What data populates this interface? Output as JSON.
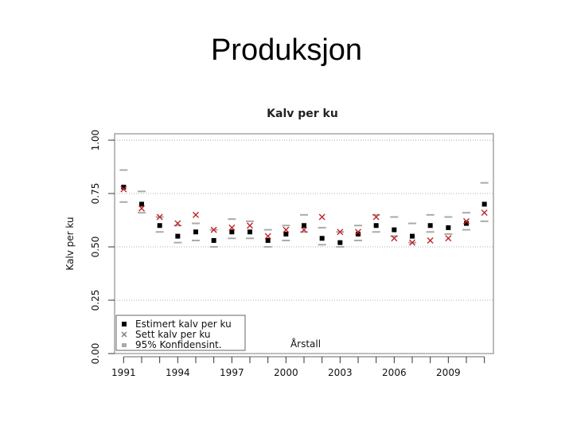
{
  "slide": {
    "title": "Produksjon"
  },
  "colors": {
    "estimate": "#000000",
    "observed": "#c0262b",
    "ci": "#aaaaaa",
    "grid": "#999999"
  },
  "chart_data": {
    "type": "scatter",
    "title": "Kalv per ku",
    "xlabel": "Årstall",
    "ylabel": "Kalv per ku",
    "x": [
      1991,
      1992,
      1993,
      1994,
      1995,
      1996,
      1997,
      1998,
      1999,
      2000,
      2001,
      2002,
      2003,
      2004,
      2005,
      2006,
      2007,
      2008,
      2009,
      2010,
      2011
    ],
    "xlim": [
      1990.5,
      2011.5
    ],
    "ylim": [
      0,
      1.03
    ],
    "xticks": [
      "1991",
      "1994",
      "1997",
      "2000",
      "2003",
      "2006",
      "2009"
    ],
    "yticks": [
      "0.00",
      "0.25",
      "0.50",
      "0.75",
      "1.00"
    ],
    "grid": true,
    "legend_position": "bottom-left",
    "series": [
      {
        "name": "Estimert kalv per ku",
        "marker": "square",
        "values": [
          0.78,
          0.7,
          0.6,
          0.55,
          0.57,
          0.53,
          0.57,
          0.57,
          0.53,
          0.56,
          0.6,
          0.54,
          0.52,
          0.56,
          0.6,
          0.58,
          0.55,
          0.6,
          0.59,
          0.61,
          0.7
        ]
      },
      {
        "name": "Sett kalv per ku",
        "marker": "x",
        "values": [
          0.77,
          0.68,
          0.64,
          0.61,
          0.65,
          0.58,
          0.59,
          0.6,
          0.55,
          0.58,
          0.58,
          0.64,
          0.57,
          0.57,
          0.64,
          0.54,
          0.52,
          0.53,
          0.54,
          0.62,
          0.66
        ]
      },
      {
        "name": "95% Konfidensint.",
        "marker": "dash",
        "lower": [
          0.71,
          0.66,
          0.57,
          0.52,
          0.53,
          0.5,
          0.54,
          0.54,
          0.5,
          0.53,
          0.57,
          0.51,
          0.5,
          0.53,
          0.57,
          0.55,
          0.52,
          0.57,
          0.56,
          0.58,
          0.62
        ],
        "upper": [
          0.86,
          0.76,
          0.64,
          0.6,
          0.61,
          0.58,
          0.63,
          0.62,
          0.58,
          0.6,
          0.65,
          0.59,
          0.57,
          0.6,
          0.65,
          0.64,
          0.61,
          0.65,
          0.64,
          0.66,
          0.8
        ]
      }
    ]
  }
}
